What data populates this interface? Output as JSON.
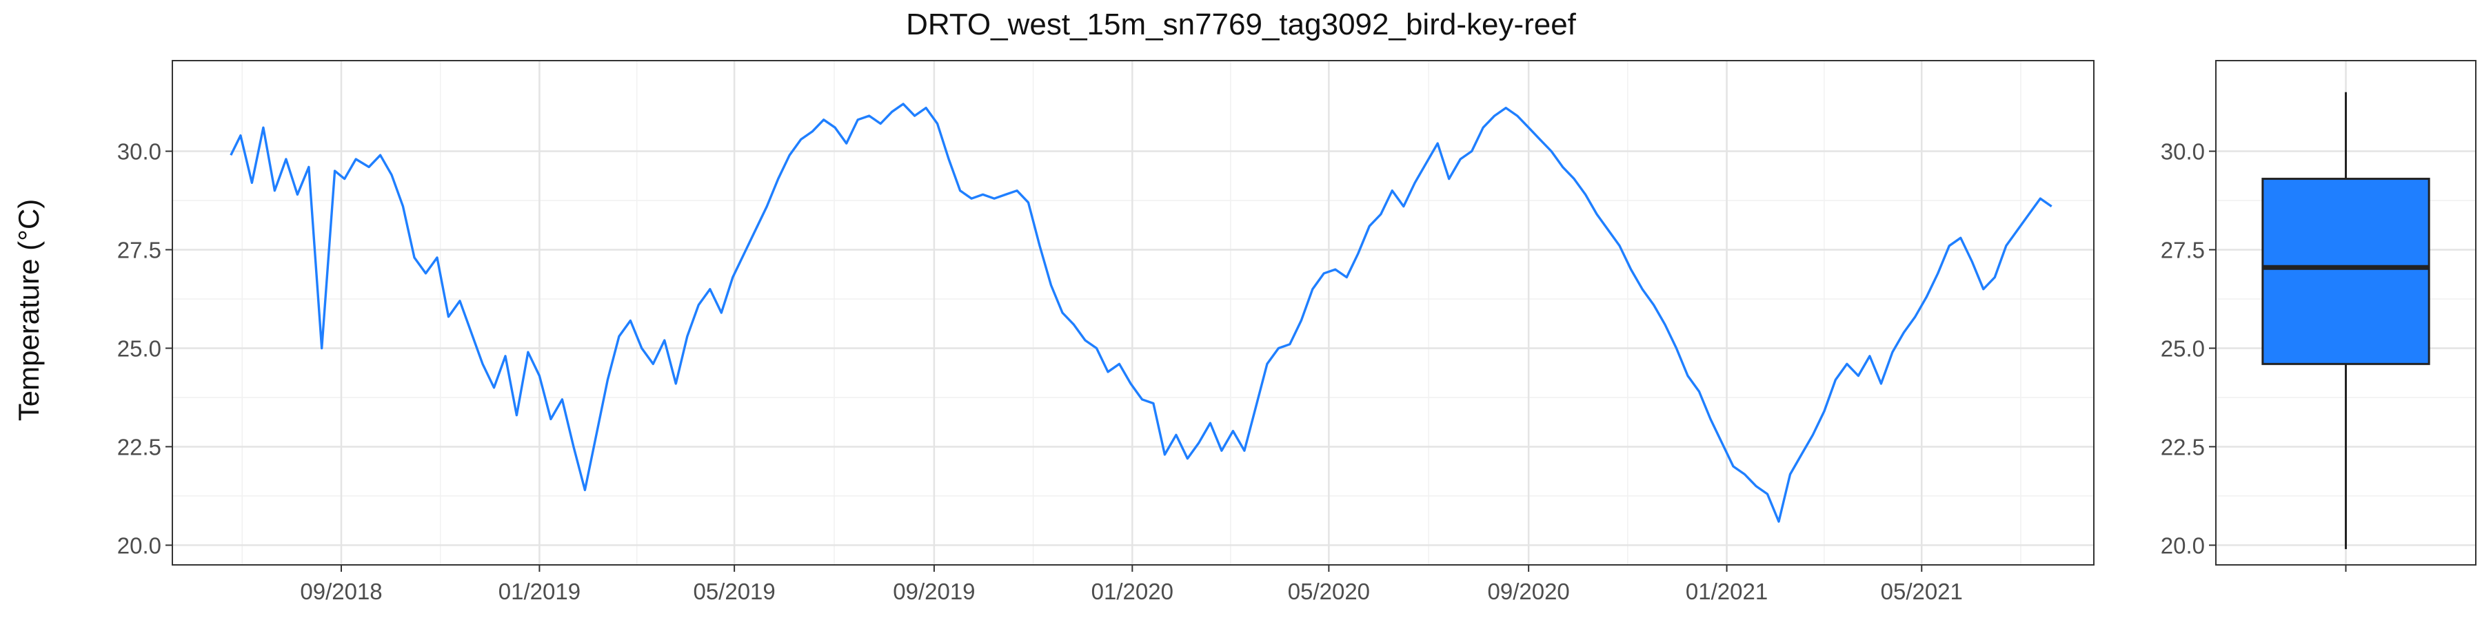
{
  "title": "DRTO_west_15m_sn7769_tag3092_bird-key-reef",
  "colors": {
    "series": "#1f7fff",
    "box_fill": "#1f7fff",
    "grid_major": "#e4e4e4",
    "grid_minor": "#f1f1f1",
    "axis": "#333333",
    "tick_text": "#4d4d4d"
  },
  "chart_data": [
    {
      "type": "line",
      "title": "DRTO_west_15m_sn7769_tag3092_bird-key-reef",
      "xlabel": "",
      "ylabel": "Temperature (°C)",
      "x_ticks": [
        "09/2018",
        "01/2019",
        "05/2019",
        "09/2019",
        "01/2020",
        "05/2020",
        "09/2020",
        "01/2021",
        "05/2021"
      ],
      "y_ticks": [
        "20.0",
        "22.5",
        "25.0",
        "27.5",
        "30.0"
      ],
      "xlim": [
        "2018-05-20",
        "2021-08-15"
      ],
      "ylim": [
        19.5,
        32.3
      ],
      "grid": true,
      "series": [
        {
          "color": "#1f7fff",
          "x": [
            "2018-06-25",
            "2018-07-01",
            "2018-07-08",
            "2018-07-15",
            "2018-07-22",
            "2018-07-29",
            "2018-08-05",
            "2018-08-12",
            "2018-08-20",
            "2018-08-28",
            "2018-09-03",
            "2018-09-10",
            "2018-09-18",
            "2018-09-25",
            "2018-10-02",
            "2018-10-09",
            "2018-10-16",
            "2018-10-23",
            "2018-10-30",
            "2018-11-06",
            "2018-11-13",
            "2018-11-20",
            "2018-11-27",
            "2018-12-04",
            "2018-12-11",
            "2018-12-18",
            "2018-12-25",
            "2019-01-01",
            "2019-01-08",
            "2019-01-15",
            "2019-01-22",
            "2019-01-29",
            "2019-02-05",
            "2019-02-12",
            "2019-02-19",
            "2019-02-26",
            "2019-03-05",
            "2019-03-12",
            "2019-03-19",
            "2019-03-26",
            "2019-04-02",
            "2019-04-09",
            "2019-04-16",
            "2019-04-23",
            "2019-04-30",
            "2019-05-07",
            "2019-05-14",
            "2019-05-21",
            "2019-05-28",
            "2019-06-04",
            "2019-06-11",
            "2019-06-18",
            "2019-06-25",
            "2019-07-02",
            "2019-07-09",
            "2019-07-16",
            "2019-07-23",
            "2019-07-30",
            "2019-08-06",
            "2019-08-13",
            "2019-08-20",
            "2019-08-27",
            "2019-09-03",
            "2019-09-10",
            "2019-09-17",
            "2019-09-24",
            "2019-10-01",
            "2019-10-08",
            "2019-10-15",
            "2019-10-22",
            "2019-10-29",
            "2019-11-05",
            "2019-11-12",
            "2019-11-19",
            "2019-11-26",
            "2019-12-03",
            "2019-12-10",
            "2019-12-17",
            "2019-12-24",
            "2019-12-31",
            "2020-01-07",
            "2020-01-14",
            "2020-01-21",
            "2020-01-28",
            "2020-02-04",
            "2020-02-11",
            "2020-02-18",
            "2020-02-25",
            "2020-03-03",
            "2020-03-10",
            "2020-03-17",
            "2020-03-24",
            "2020-03-31",
            "2020-04-07",
            "2020-04-14",
            "2020-04-21",
            "2020-04-28",
            "2020-05-05",
            "2020-05-12",
            "2020-05-19",
            "2020-05-26",
            "2020-06-02",
            "2020-06-09",
            "2020-06-16",
            "2020-06-23",
            "2020-06-30",
            "2020-07-07",
            "2020-07-14",
            "2020-07-21",
            "2020-07-28",
            "2020-08-04",
            "2020-08-11",
            "2020-08-18",
            "2020-08-25",
            "2020-09-01",
            "2020-09-08",
            "2020-09-15",
            "2020-09-22",
            "2020-09-29",
            "2020-10-06",
            "2020-10-13",
            "2020-10-20",
            "2020-10-27",
            "2020-11-03",
            "2020-11-10",
            "2020-11-17",
            "2020-11-24",
            "2020-12-01",
            "2020-12-08",
            "2020-12-15",
            "2020-12-22",
            "2020-12-29",
            "2021-01-05",
            "2021-01-12",
            "2021-01-19",
            "2021-01-26",
            "2021-02-02",
            "2021-02-09",
            "2021-02-16",
            "2021-02-23",
            "2021-03-02",
            "2021-03-09",
            "2021-03-16",
            "2021-03-23",
            "2021-03-30",
            "2021-04-06",
            "2021-04-13",
            "2021-04-20",
            "2021-04-27",
            "2021-05-04",
            "2021-05-11",
            "2021-05-18",
            "2021-05-25",
            "2021-06-01",
            "2021-06-08",
            "2021-06-15",
            "2021-06-22",
            "2021-06-29",
            "2021-07-06",
            "2021-07-13",
            "2021-07-20"
          ],
          "y": [
            29.9,
            30.4,
            29.2,
            30.6,
            29.0,
            29.8,
            28.9,
            29.6,
            25.0,
            29.5,
            29.3,
            29.8,
            29.6,
            29.9,
            29.4,
            28.6,
            27.3,
            26.9,
            27.3,
            25.8,
            26.2,
            25.4,
            24.6,
            24.0,
            24.8,
            23.3,
            24.9,
            24.3,
            23.2,
            23.7,
            22.5,
            21.4,
            22.8,
            24.2,
            25.3,
            25.7,
            25.0,
            24.6,
            25.2,
            24.1,
            25.3,
            26.1,
            26.5,
            25.9,
            26.8,
            27.4,
            28.0,
            28.6,
            29.3,
            29.9,
            30.3,
            30.5,
            30.8,
            30.6,
            30.2,
            30.8,
            30.9,
            30.7,
            31.0,
            31.2,
            30.9,
            31.1,
            30.7,
            29.8,
            29.0,
            28.8,
            28.9,
            28.8,
            28.9,
            29.0,
            28.7,
            27.6,
            26.6,
            25.9,
            25.6,
            25.2,
            25.0,
            24.4,
            24.6,
            24.1,
            23.7,
            23.6,
            22.3,
            22.8,
            22.2,
            22.6,
            23.1,
            22.4,
            22.9,
            22.4,
            23.5,
            24.6,
            25.0,
            25.1,
            25.7,
            26.5,
            26.9,
            27.0,
            26.8,
            27.4,
            28.1,
            28.4,
            29.0,
            28.6,
            29.2,
            29.7,
            30.2,
            29.3,
            29.8,
            30.0,
            30.6,
            30.9,
            31.1,
            30.9,
            30.6,
            30.3,
            30.0,
            29.6,
            29.3,
            28.9,
            28.4,
            28.0,
            27.6,
            27.0,
            26.5,
            26.1,
            25.6,
            25.0,
            24.3,
            23.9,
            23.2,
            22.6,
            22.0,
            21.8,
            21.5,
            21.3,
            20.6,
            21.8,
            22.3,
            22.8,
            23.4,
            24.2,
            24.6,
            24.3,
            24.8,
            24.1,
            24.9,
            25.4,
            25.8,
            26.3,
            26.9,
            27.6,
            27.8,
            27.2,
            26.5,
            26.8,
            27.6,
            28.0,
            28.4,
            28.8,
            28.6
          ]
        }
      ]
    },
    {
      "type": "box",
      "ylim": [
        19.5,
        32.3
      ],
      "y_ticks": [
        "20.0",
        "22.5",
        "25.0",
        "27.5",
        "30.0"
      ],
      "min": 19.9,
      "q1": 24.6,
      "median": 27.05,
      "q3": 29.3,
      "max": 31.5,
      "color": "#1f7fff"
    }
  ]
}
